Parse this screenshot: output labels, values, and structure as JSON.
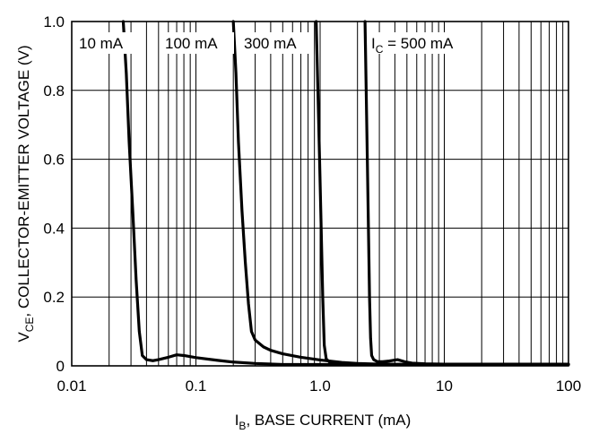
{
  "chart_data": {
    "type": "line",
    "x_scale": "log",
    "xlim": [
      0.01,
      100
    ],
    "ylim": [
      0,
      1.0
    ],
    "grid": true,
    "x_ticks": [
      {
        "value": 0.01,
        "label": "0.01"
      },
      {
        "value": 0.1,
        "label": "0.1"
      },
      {
        "value": 1,
        "label": "1.0"
      },
      {
        "value": 10,
        "label": "10"
      },
      {
        "value": 100,
        "label": "100"
      }
    ],
    "y_ticks": [
      {
        "value": 0,
        "label": "0"
      },
      {
        "value": 0.2,
        "label": "0.2"
      },
      {
        "value": 0.4,
        "label": "0.4"
      },
      {
        "value": 0.6,
        "label": "0.6"
      },
      {
        "value": 0.8,
        "label": "0.8"
      },
      {
        "value": 1.0,
        "label": "1.0"
      }
    ],
    "xlabel": {
      "prefix": "I",
      "sub": "B",
      "rest": ", BASE CURRENT (mA)"
    },
    "ylabel": {
      "prefix": "V",
      "sub": "CE",
      "rest": ", COLLECTOR-EMITTER VOLTAGE (V)"
    },
    "series": [
      {
        "name": "10 mA",
        "label_parts": {
          "main": "10 mA"
        },
        "x": [
          0.026,
          0.0275,
          0.029,
          0.031,
          0.033,
          0.035,
          0.037,
          0.04,
          0.045,
          0.05,
          0.06,
          0.07,
          0.08,
          0.1,
          0.15,
          0.2,
          0.3,
          0.5,
          1,
          2,
          5,
          10,
          30,
          100
        ],
        "y": [
          1.0,
          0.85,
          0.65,
          0.45,
          0.25,
          0.1,
          0.03,
          0.018,
          0.015,
          0.018,
          0.025,
          0.032,
          0.03,
          0.024,
          0.016,
          0.011,
          0.007,
          0.004,
          0.002,
          0.001,
          0.001,
          0.001,
          0.001,
          0.001
        ]
      },
      {
        "name": "100 mA",
        "label_parts": {
          "main": "100 mA"
        },
        "x": [
          0.2,
          0.21,
          0.22,
          0.235,
          0.25,
          0.265,
          0.28,
          0.3,
          0.35,
          0.4,
          0.5,
          0.7,
          1,
          1.5,
          2,
          3,
          5,
          10,
          30,
          100
        ],
        "y": [
          1.0,
          0.85,
          0.65,
          0.45,
          0.3,
          0.18,
          0.1,
          0.075,
          0.055,
          0.045,
          0.035,
          0.025,
          0.017,
          0.01,
          0.007,
          0.005,
          0.004,
          0.003,
          0.003,
          0.003
        ]
      },
      {
        "name": "300 mA",
        "label_parts": {
          "main": "300 mA"
        },
        "x": [
          0.93,
          0.96,
          0.99,
          1.02,
          1.05,
          1.08,
          1.12,
          1.2,
          1.4,
          2,
          3,
          5,
          10,
          30,
          100
        ],
        "y": [
          1.0,
          0.8,
          0.6,
          0.4,
          0.2,
          0.06,
          0.02,
          0.01,
          0.007,
          0.005,
          0.005,
          0.004,
          0.004,
          0.004,
          0.004
        ]
      },
      {
        "name": "IC = 500 mA",
        "label_parts": {
          "pre": "I",
          "sub": "C",
          "post": " = 500 mA"
        },
        "x": [
          2.3,
          2.35,
          2.4,
          2.45,
          2.5,
          2.55,
          2.6,
          2.7,
          2.9,
          3.2,
          3.6,
          4.2,
          4.8,
          5.5,
          7,
          10,
          30,
          100
        ],
        "y": [
          1.0,
          0.8,
          0.6,
          0.4,
          0.2,
          0.08,
          0.03,
          0.018,
          0.012,
          0.012,
          0.014,
          0.018,
          0.012,
          0.008,
          0.006,
          0.005,
          0.005,
          0.005
        ]
      }
    ]
  }
}
